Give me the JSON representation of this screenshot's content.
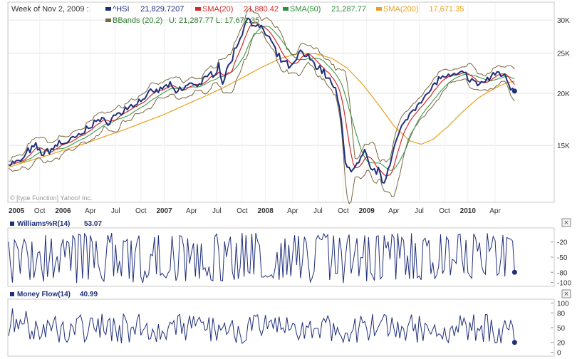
{
  "colors": {
    "hsi": "#1f2f7a",
    "sma20": "#d42a2a",
    "sma50": "#2f8f3a",
    "sma200": "#e9a020",
    "bbands": "#7a6640",
    "axis_text": "#333333",
    "grid": "#e4e4e4",
    "frame": "#c8c8c8",
    "close_btn": "#555555"
  },
  "chart_data": [
    {
      "type": "line",
      "scale": "log",
      "ylim": [
        11000,
        33000
      ],
      "yticks": [
        15000,
        20000,
        25000,
        30000
      ],
      "ytick_labels": [
        "15K",
        "20K",
        "25K",
        "30K"
      ],
      "x_range": [
        0,
        280
      ],
      "x_ticks": [
        {
          "x": 0,
          "label": "2005"
        },
        {
          "x": 16,
          "label": "Oct"
        },
        {
          "x": 28,
          "label": "2006"
        },
        {
          "x": 42,
          "label": "Apr"
        },
        {
          "x": 55,
          "label": "Jul"
        },
        {
          "x": 68,
          "label": "Oct"
        },
        {
          "x": 80,
          "label": "2007"
        },
        {
          "x": 94,
          "label": "Apr"
        },
        {
          "x": 107,
          "label": "Jul"
        },
        {
          "x": 120,
          "label": "Oct"
        },
        {
          "x": 132,
          "label": "2008"
        },
        {
          "x": 146,
          "label": "Apr"
        },
        {
          "x": 159,
          "label": "Jul"
        },
        {
          "x": 172,
          "label": "Oct"
        },
        {
          "x": 184,
          "label": "2009"
        },
        {
          "x": 198,
          "label": "Apr"
        },
        {
          "x": 211,
          "label": "Jul"
        },
        {
          "x": 224,
          "label": "Oct"
        },
        {
          "x": 236,
          "label": "2010"
        },
        {
          "x": 250,
          "label": "Apr"
        }
      ],
      "header": "Week of Nov 2, 2009 :",
      "legend": [
        {
          "name": "^HSI",
          "value": "21,829.7207",
          "color": "#1f2f7a"
        },
        {
          "name": "SMA(20)",
          "value": "21,880.42",
          "color": "#d42a2a"
        },
        {
          "name": "SMA(50)",
          "value": "21,287.77",
          "color": "#2f8f3a"
        },
        {
          "name": "SMA(200)",
          "value": "17,671.35",
          "color": "#e9a020"
        }
      ],
      "legend2": {
        "name": "BBands (20,2)",
        "value": "U: 21,287.77  L: 17,671.35",
        "color": "#7a6640"
      },
      "copyright": "© [type Function] Yahoo! Inc.",
      "hsi_anchors": [
        [
          0,
          13600
        ],
        [
          6,
          13700
        ],
        [
          10,
          14500
        ],
        [
          14,
          14900
        ],
        [
          18,
          14300
        ],
        [
          22,
          14700
        ],
        [
          26,
          15200
        ],
        [
          30,
          15300
        ],
        [
          34,
          15600
        ],
        [
          38,
          16000
        ],
        [
          42,
          16800
        ],
        [
          46,
          17300
        ],
        [
          50,
          17000
        ],
        [
          54,
          17600
        ],
        [
          58,
          18000
        ],
        [
          62,
          18600
        ],
        [
          66,
          19000
        ],
        [
          70,
          19600
        ],
        [
          74,
          20100
        ],
        [
          78,
          20400
        ],
        [
          82,
          21000
        ],
        [
          86,
          20100
        ],
        [
          90,
          20600
        ],
        [
          94,
          21200
        ],
        [
          98,
          21000
        ],
        [
          102,
          21800
        ],
        [
          106,
          22600
        ],
        [
          108,
          23400
        ],
        [
          110,
          21200
        ],
        [
          114,
          23800
        ],
        [
          118,
          26500
        ],
        [
          122,
          29800
        ],
        [
          124,
          30300
        ],
        [
          127,
          29000
        ],
        [
          130,
          28500
        ],
        [
          134,
          27200
        ],
        [
          138,
          24600
        ],
        [
          142,
          23600
        ],
        [
          146,
          23100
        ],
        [
          150,
          25200
        ],
        [
          153,
          24600
        ],
        [
          156,
          23900
        ],
        [
          160,
          23000
        ],
        [
          164,
          21900
        ],
        [
          168,
          20300
        ],
        [
          171,
          17300
        ],
        [
          173,
          13800
        ],
        [
          176,
          12900
        ],
        [
          180,
          13600
        ],
        [
          183,
          14400
        ],
        [
          186,
          13200
        ],
        [
          190,
          13000
        ],
        [
          193,
          12200
        ],
        [
          196,
          13800
        ],
        [
          200,
          15700
        ],
        [
          204,
          17200
        ],
        [
          208,
          18400
        ],
        [
          212,
          19400
        ],
        [
          216,
          20000
        ],
        [
          220,
          21500
        ],
        [
          224,
          22000
        ],
        [
          228,
          21800
        ],
        [
          232,
          22400
        ],
        [
          236,
          22000
        ],
        [
          240,
          21000
        ],
        [
          244,
          21300
        ],
        [
          248,
          21900
        ],
        [
          252,
          22600
        ],
        [
          256,
          21700
        ],
        [
          258,
          20800
        ],
        [
          260,
          20500
        ]
      ],
      "sma200_anchors": [
        [
          0,
          13300
        ],
        [
          20,
          14200
        ],
        [
          40,
          15200
        ],
        [
          60,
          16400
        ],
        [
          80,
          17800
        ],
        [
          100,
          19600
        ],
        [
          110,
          20600
        ],
        [
          120,
          21800
        ],
        [
          130,
          23100
        ],
        [
          140,
          24300
        ],
        [
          150,
          25000
        ],
        [
          158,
          24900
        ],
        [
          166,
          24300
        ],
        [
          174,
          23000
        ],
        [
          182,
          21000
        ],
        [
          190,
          18800
        ],
        [
          198,
          16700
        ],
        [
          206,
          15400
        ],
        [
          212,
          15100
        ],
        [
          218,
          15500
        ],
        [
          226,
          16700
        ],
        [
          234,
          18200
        ],
        [
          242,
          19600
        ],
        [
          250,
          20600
        ],
        [
          256,
          21200
        ],
        [
          260,
          21400
        ]
      ]
    },
    {
      "type": "line",
      "title": "Williams%R(14)",
      "value": "53.07",
      "ylim": [
        -105,
        5
      ],
      "yticks": [
        -20,
        -50,
        -80,
        -100
      ],
      "ytick_labels": [
        "-20",
        "-50",
        "-80",
        "-100"
      ]
    },
    {
      "type": "line",
      "title": "Money Flow(14)",
      "value": "40.99",
      "ylim": [
        -5,
        105
      ],
      "yticks": [
        100,
        80,
        50,
        20,
        0
      ],
      "ytick_labels": [
        "100",
        "80",
        "50",
        "20",
        "0"
      ]
    }
  ],
  "close_glyph": "×"
}
